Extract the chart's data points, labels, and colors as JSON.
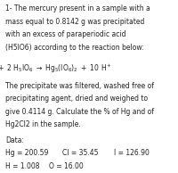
{
  "figsize": [
    2.0,
    1.94
  ],
  "dpi": 100,
  "bg_color": "white",
  "text_color": "#222222",
  "fontsize": 5.5,
  "lines_p1": [
    "1- The mercury present in a sample with a",
    "mass equal to 0.8142 g was precipitated",
    "with an excess of paraperiodic acid",
    "(H5IO6) according to the reaction below:"
  ],
  "lines_p2": [
    "The precipitate was filtered, washed free of",
    "precipitating agent, dried and weighed to",
    "give 0.4114 g. Calculate the % of Hg and of",
    "Hg2Cl2 in the sample."
  ],
  "data_label": "Data:",
  "data_row1_col1": "Hg = 200.59",
  "data_row1_col2": "Cl = 35.45",
  "data_row1_col3": "I = 126.90",
  "data_row2_col1": "H = 1.008",
  "data_row2_col2": "O = 16.00"
}
